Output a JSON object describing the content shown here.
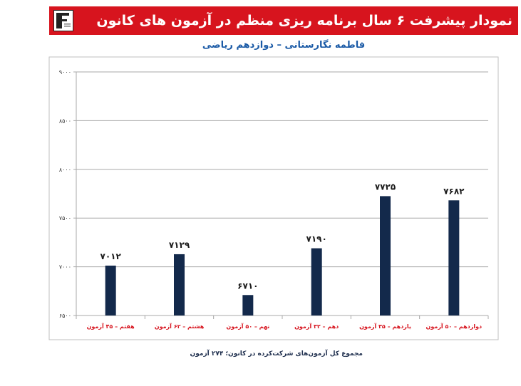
{
  "header": {
    "title": "نمودار پیشرفت ۶ سال برنامه ریزی منظم در آزمون های کانون",
    "subtitle": "فاطمه نگارستانی – دوازدهم ریاضی"
  },
  "footer": {
    "note": "مجموع کل آزمون‌های شرکت‌کرده در کانون؛ ۲۷۴ آزمون"
  },
  "colors": {
    "banner": "#d7141e",
    "bar": "#13294b",
    "subtitle": "#1a5aa6",
    "category_label": "#d7141e"
  },
  "chart_data": {
    "type": "bar",
    "categories": [
      "هفتم – ۴۵ آزمون",
      "هشتم – ۶۲ آزمون",
      "نهم – ۵۰ آزمون",
      "دهم – ۳۲ آزمون",
      "یازدهم – ۳۵ آزمون",
      "دوازدهم – ۵۰ آزمون"
    ],
    "values": [
      7012,
      7129,
      6710,
      7190,
      7725,
      7682
    ],
    "value_labels": [
      "۷۰۱۲",
      "۷۱۲۹",
      "۶۷۱۰",
      "۷۱۹۰",
      "۷۷۲۵",
      "۷۶۸۲"
    ],
    "yticks": [
      6500,
      7000,
      7500,
      8000,
      8500,
      9000
    ],
    "ytick_labels": [
      "۶۵۰۰",
      "۷۰۰۰",
      "۷۵۰۰",
      "۸۰۰۰",
      "۸۵۰۰",
      "۹۰۰۰"
    ],
    "ylim": [
      6500,
      9000
    ],
    "grid": true,
    "title": "فاطمه نگارستانی – دوازدهم ریاضی",
    "xlabel": "",
    "ylabel": ""
  }
}
